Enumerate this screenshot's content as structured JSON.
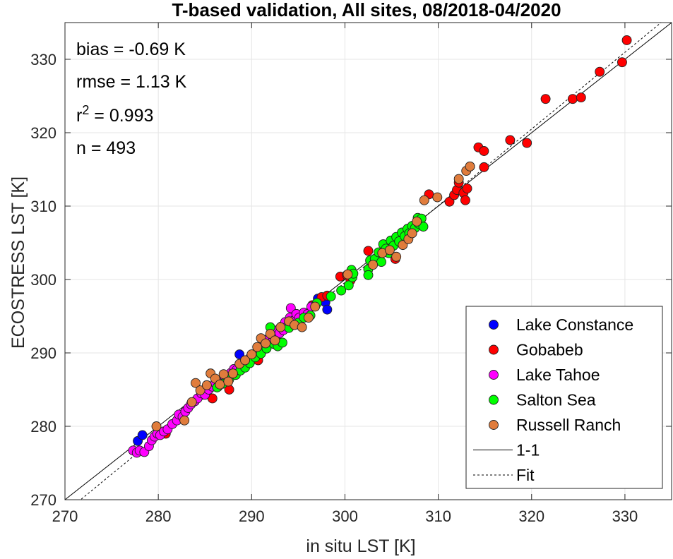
{
  "chart_data": {
    "type": "scatter",
    "title": "T-based validation, All sites, 08/2018-04/2020",
    "xlabel": "in situ LST [K]",
    "ylabel": "ECOSTRESS LST [K]",
    "xlim": [
      270,
      335
    ],
    "ylim": [
      270,
      335
    ],
    "xticks": [
      "270",
      "280",
      "290",
      "300",
      "310",
      "320",
      "330"
    ],
    "yticks": [
      "270",
      "280",
      "290",
      "300",
      "310",
      "320",
      "330"
    ],
    "grid": true,
    "legend_position": "bottom-right",
    "stats": {
      "bias": "bias = -0.69 K",
      "rmse": "rmse = 1.13 K",
      "r2_prefix": "r",
      "r2_sup": "2",
      "r2_value": " = 0.993",
      "n": "n = 493"
    },
    "lines": [
      {
        "name": "1-1",
        "slope": 1.0,
        "intercept": 0.0,
        "style": "solid",
        "color": "#000000"
      },
      {
        "name": "Fit",
        "slope": 1.045,
        "intercept": -13.9,
        "style": "dashed",
        "color": "#000000"
      }
    ],
    "series": [
      {
        "name": "Lake Constance",
        "color": "#0000ff",
        "points": [
          [
            277.8,
            278.0
          ],
          [
            278.3,
            278.8
          ],
          [
            288.7,
            289.8
          ],
          [
            297.9,
            296.9
          ],
          [
            298.1,
            295.9
          ],
          [
            297.1,
            297.4
          ]
        ]
      },
      {
        "name": "Gobabeb",
        "color": "#ff0000",
        "points": [
          [
            280.8,
            279.0
          ],
          [
            285.8,
            283.8
          ],
          [
            287.6,
            285.0
          ],
          [
            290.7,
            289.0
          ],
          [
            296.5,
            296.5
          ],
          [
            297.5,
            297.6
          ],
          [
            298.1,
            297.8
          ],
          [
            299.5,
            300.4
          ],
          [
            300.2,
            300.6
          ],
          [
            300.6,
            299.9
          ],
          [
            302.5,
            303.9
          ],
          [
            305.4,
            302.8
          ],
          [
            309.0,
            311.6
          ],
          [
            311.2,
            310.6
          ],
          [
            311.7,
            311.5
          ],
          [
            312.0,
            312.2
          ],
          [
            312.2,
            313.2
          ],
          [
            312.7,
            311.8
          ],
          [
            312.9,
            310.8
          ],
          [
            313.1,
            312.4
          ],
          [
            313.4,
            315.4
          ],
          [
            314.3,
            318.0
          ],
          [
            314.9,
            315.3
          ],
          [
            314.9,
            317.5
          ],
          [
            317.7,
            319.0
          ],
          [
            319.5,
            318.6
          ],
          [
            321.5,
            324.6
          ],
          [
            324.4,
            324.6
          ],
          [
            325.3,
            324.8
          ],
          [
            327.3,
            328.3
          ],
          [
            329.7,
            329.6
          ],
          [
            330.2,
            332.6
          ]
        ]
      },
      {
        "name": "Lake Tahoe",
        "color": "#ff00ff",
        "points": [
          [
            277.3,
            276.7
          ],
          [
            277.7,
            276.4
          ],
          [
            278.0,
            276.7
          ],
          [
            278.5,
            276.5
          ],
          [
            279.0,
            277.3
          ],
          [
            279.3,
            278.1
          ],
          [
            279.6,
            278.6
          ],
          [
            279.9,
            279.0
          ],
          [
            280.2,
            278.8
          ],
          [
            280.6,
            279.3
          ],
          [
            281.0,
            279.6
          ],
          [
            281.5,
            280.3
          ],
          [
            282.0,
            280.8
          ],
          [
            282.2,
            281.6
          ],
          [
            282.6,
            281.3
          ],
          [
            282.9,
            282.0
          ],
          [
            283.2,
            282.5
          ],
          [
            283.5,
            283.0
          ],
          [
            283.9,
            283.4
          ],
          [
            284.2,
            283.8
          ],
          [
            284.6,
            284.5
          ],
          [
            285.0,
            284.3
          ],
          [
            285.4,
            285.0
          ],
          [
            285.8,
            285.4
          ],
          [
            286.1,
            285.9
          ],
          [
            286.4,
            285.4
          ],
          [
            286.8,
            286.2
          ],
          [
            287.1,
            286.8
          ],
          [
            287.4,
            286.6
          ],
          [
            287.8,
            287.3
          ],
          [
            288.1,
            287.8
          ],
          [
            288.4,
            287.7
          ],
          [
            288.8,
            288.3
          ],
          [
            289.1,
            288.1
          ],
          [
            289.4,
            288.9
          ],
          [
            289.8,
            289.3
          ],
          [
            290.1,
            289.8
          ],
          [
            290.3,
            289.4
          ],
          [
            290.6,
            290.1
          ],
          [
            290.9,
            290.7
          ],
          [
            291.2,
            290.4
          ],
          [
            291.4,
            291.2
          ],
          [
            291.6,
            291.8
          ],
          [
            291.9,
            292.0
          ],
          [
            292.1,
            291.4
          ],
          [
            292.3,
            292.6
          ],
          [
            292.6,
            292.3
          ],
          [
            292.8,
            293.1
          ],
          [
            293.0,
            292.7
          ],
          [
            293.2,
            293.6
          ],
          [
            293.4,
            293.1
          ],
          [
            293.6,
            294.2
          ],
          [
            293.9,
            293.7
          ],
          [
            294.1,
            294.8
          ],
          [
            294.2,
            296.1
          ],
          [
            294.5,
            294.4
          ],
          [
            294.8,
            295.3
          ],
          [
            295.1,
            294.8
          ],
          [
            295.6,
            295.5
          ],
          [
            296.0,
            295.3
          ],
          [
            296.4,
            296.3
          ],
          [
            296.9,
            296.6
          ]
        ]
      },
      {
        "name": "Salton Sea",
        "color": "#00ff00",
        "points": [
          [
            286.3,
            285.3
          ],
          [
            286.9,
            285.8
          ],
          [
            287.6,
            286.4
          ],
          [
            288.3,
            287.0
          ],
          [
            288.8,
            287.6
          ],
          [
            289.3,
            288.0
          ],
          [
            289.8,
            288.6
          ],
          [
            290.4,
            289.4
          ],
          [
            291.0,
            289.9
          ],
          [
            291.6,
            290.6
          ],
          [
            292.0,
            293.5
          ],
          [
            292.4,
            291.2
          ],
          [
            292.8,
            290.9
          ],
          [
            293.3,
            291.4
          ],
          [
            294.0,
            293.4
          ],
          [
            295.0,
            294.1
          ],
          [
            295.6,
            294.8
          ],
          [
            296.3,
            295.1
          ],
          [
            297.0,
            296.8
          ],
          [
            298.5,
            297.7
          ],
          [
            299.6,
            298.5
          ],
          [
            300.4,
            299.2
          ],
          [
            300.8,
            300.3
          ],
          [
            300.7,
            301.3
          ],
          [
            300.9,
            300.8
          ],
          [
            302.5,
            301.4
          ],
          [
            302.7,
            302.6
          ],
          [
            302.5,
            300.6
          ],
          [
            303.2,
            302.8
          ],
          [
            303.6,
            303.7
          ],
          [
            303.9,
            302.4
          ],
          [
            304.1,
            304.8
          ],
          [
            304.4,
            304.2
          ],
          [
            304.7,
            303.6
          ],
          [
            304.9,
            305.3
          ],
          [
            305.2,
            304.6
          ],
          [
            305.5,
            305.8
          ],
          [
            305.8,
            305.2
          ],
          [
            306.1,
            306.4
          ],
          [
            306.4,
            305.9
          ],
          [
            306.7,
            306.9
          ],
          [
            306.9,
            306.3
          ],
          [
            307.2,
            307.3
          ],
          [
            307.5,
            307.0
          ],
          [
            307.8,
            308.4
          ],
          [
            307.9,
            307.6
          ],
          [
            308.2,
            308.3
          ],
          [
            308.4,
            307.2
          ]
        ]
      },
      {
        "name": "Russell Ranch",
        "color": "#e07c3c",
        "points": [
          [
            279.8,
            280.0
          ],
          [
            282.8,
            280.8
          ],
          [
            283.6,
            283.3
          ],
          [
            284.0,
            285.9
          ],
          [
            284.5,
            284.9
          ],
          [
            285.2,
            285.6
          ],
          [
            285.6,
            287.2
          ],
          [
            286.1,
            286.5
          ],
          [
            286.6,
            285.7
          ],
          [
            287.0,
            287.1
          ],
          [
            287.5,
            286.1
          ],
          [
            288.0,
            287.2
          ],
          [
            288.7,
            288.5
          ],
          [
            289.3,
            289.0
          ],
          [
            290.0,
            289.8
          ],
          [
            290.6,
            290.8
          ],
          [
            291.0,
            292.0
          ],
          [
            291.5,
            291.3
          ],
          [
            292.0,
            292.6
          ],
          [
            292.5,
            291.7
          ],
          [
            293.1,
            293.5
          ],
          [
            294.0,
            294.3
          ],
          [
            294.6,
            293.8
          ],
          [
            295.4,
            293.5
          ],
          [
            296.1,
            294.8
          ],
          [
            296.8,
            296.3
          ],
          [
            300.3,
            300.7
          ],
          [
            303.0,
            302.0
          ],
          [
            304.0,
            303.6
          ],
          [
            304.8,
            304.0
          ],
          [
            305.5,
            303.1
          ],
          [
            306.2,
            304.7
          ],
          [
            306.8,
            305.5
          ],
          [
            307.2,
            306.3
          ],
          [
            307.7,
            307.9
          ],
          [
            308.5,
            310.8
          ],
          [
            309.9,
            311.2
          ],
          [
            312.2,
            313.7
          ],
          [
            313.0,
            314.8
          ],
          [
            313.4,
            315.4
          ]
        ]
      }
    ]
  }
}
